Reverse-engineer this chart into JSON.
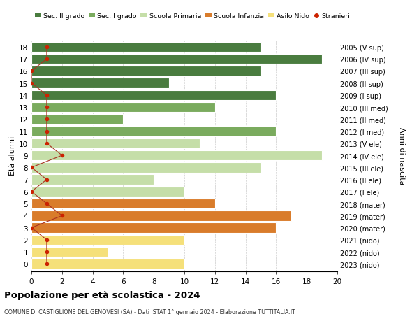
{
  "ages": [
    18,
    17,
    16,
    15,
    14,
    13,
    12,
    11,
    10,
    9,
    8,
    7,
    6,
    5,
    4,
    3,
    2,
    1,
    0
  ],
  "right_labels": [
    "2005 (V sup)",
    "2006 (IV sup)",
    "2007 (III sup)",
    "2008 (II sup)",
    "2009 (I sup)",
    "2010 (III med)",
    "2011 (II med)",
    "2012 (I med)",
    "2013 (V ele)",
    "2014 (IV ele)",
    "2015 (III ele)",
    "2016 (II ele)",
    "2017 (I ele)",
    "2018 (mater)",
    "2019 (mater)",
    "2020 (mater)",
    "2021 (nido)",
    "2022 (nido)",
    "2023 (nido)"
  ],
  "bar_values": [
    15,
    19,
    15,
    9,
    16,
    12,
    6,
    16,
    11,
    19,
    15,
    8,
    10,
    12,
    17,
    16,
    10,
    5,
    10
  ],
  "bar_colors": [
    "#4a7c3f",
    "#4a7c3f",
    "#4a7c3f",
    "#4a7c3f",
    "#4a7c3f",
    "#7aab5e",
    "#7aab5e",
    "#7aab5e",
    "#c5dea8",
    "#c5dea8",
    "#c5dea8",
    "#c5dea8",
    "#c5dea8",
    "#d97c2b",
    "#d97c2b",
    "#d97c2b",
    "#f5e07a",
    "#f5e07a",
    "#f5e07a"
  ],
  "stranieri_values": [
    1,
    1,
    0,
    0,
    1,
    1,
    1,
    1,
    1,
    2,
    0,
    1,
    0,
    1,
    2,
    0,
    1,
    1,
    1
  ],
  "legend_labels": [
    "Sec. II grado",
    "Sec. I grado",
    "Scuola Primaria",
    "Scuola Infanzia",
    "Asilo Nido",
    "Stranieri"
  ],
  "legend_colors": [
    "#4a7c3f",
    "#7aab5e",
    "#c5dea8",
    "#d97c2b",
    "#f5e07a",
    "#cc2200"
  ],
  "title": "Popolazione per età scolastica - 2024",
  "subtitle": "COMUNE DI CASTIGLIONE DEL GENOVESI (SA) - Dati ISTAT 1° gennaio 2024 - Elaborazione TUTTITALIA.IT",
  "ylabel_left": "Età alunni",
  "ylabel_right": "Anni di nascita",
  "xlim": [
    0,
    20
  ],
  "xticks": [
    0,
    2,
    4,
    6,
    8,
    10,
    12,
    14,
    16,
    18,
    20
  ],
  "stranieri_color": "#cc2200",
  "line_color": "#aa3322",
  "bg_color": "#ffffff",
  "bar_edge_color": "#ffffff",
  "bar_height": 0.85
}
